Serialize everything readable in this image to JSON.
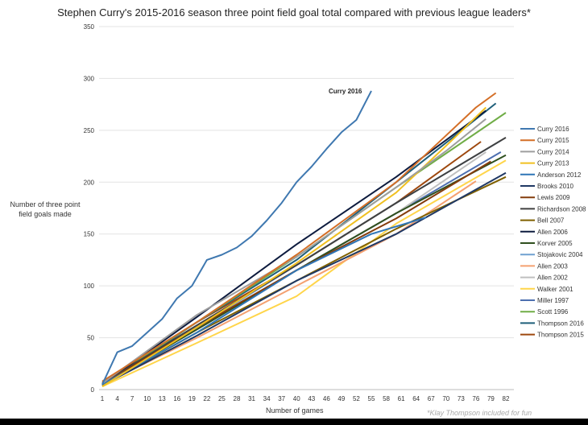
{
  "chart_data": {
    "type": "line",
    "title": "Stephen Curry's 2015-2016 season three point field goal total compared with previous league leaders*",
    "xlabel": "Number  of games",
    "ylabel": "Number  of three point field goals made",
    "footnote": "*Klay Thompson included for fun",
    "annotation": "Curry 2016",
    "xlim": [
      1,
      82
    ],
    "ylim": [
      0,
      350
    ],
    "x_ticks": [
      1,
      4,
      7,
      10,
      13,
      16,
      19,
      22,
      25,
      28,
      31,
      34,
      37,
      40,
      43,
      46,
      49,
      52,
      55,
      58,
      61,
      64,
      67,
      70,
      73,
      76,
      79,
      82
    ],
    "y_ticks": [
      0,
      50,
      100,
      150,
      200,
      250,
      300,
      350
    ],
    "grid": "horizontal",
    "legend": "right",
    "series": [
      {
        "name": "Curry 2016",
        "color": "#3f78b0",
        "points": [
          [
            1,
            5
          ],
          [
            4,
            36
          ],
          [
            7,
            42
          ],
          [
            10,
            55
          ],
          [
            13,
            68
          ],
          [
            16,
            88
          ],
          [
            19,
            100
          ],
          [
            22,
            125
          ],
          [
            25,
            130
          ],
          [
            28,
            137
          ],
          [
            31,
            148
          ],
          [
            34,
            163
          ],
          [
            37,
            180
          ],
          [
            40,
            200
          ],
          [
            43,
            215
          ],
          [
            46,
            232
          ],
          [
            49,
            248
          ],
          [
            52,
            260
          ],
          [
            55,
            288
          ]
        ]
      },
      {
        "name": "Curry 2015",
        "color": "#d46f27",
        "points": [
          [
            1,
            8
          ],
          [
            20,
            65
          ],
          [
            40,
            130
          ],
          [
            60,
            200
          ],
          [
            70,
            245
          ],
          [
            76,
            272
          ],
          [
            80,
            286
          ]
        ]
      },
      {
        "name": "Curry 2014",
        "color": "#9e9e9e",
        "points": [
          [
            1,
            6
          ],
          [
            20,
            72
          ],
          [
            40,
            128
          ],
          [
            60,
            195
          ],
          [
            70,
            230
          ],
          [
            78,
            261
          ]
        ]
      },
      {
        "name": "Curry 2013",
        "color": "#f0c020",
        "points": [
          [
            1,
            3
          ],
          [
            20,
            60
          ],
          [
            40,
            122
          ],
          [
            60,
            190
          ],
          [
            70,
            235
          ],
          [
            78,
            272
          ]
        ]
      },
      {
        "name": "Anderson 2012",
        "color": "#2e75b6",
        "points": [
          [
            1,
            5
          ],
          [
            20,
            55
          ],
          [
            40,
            115
          ],
          [
            55,
            150
          ],
          [
            66,
            166
          ]
        ]
      },
      {
        "name": "Brooks 2010",
        "color": "#1f3864",
        "points": [
          [
            1,
            4
          ],
          [
            20,
            52
          ],
          [
            40,
            105
          ],
          [
            60,
            150
          ],
          [
            82,
            209
          ]
        ]
      },
      {
        "name": "Lewis 2009",
        "color": "#843c0c",
        "points": [
          [
            1,
            5
          ],
          [
            20,
            60
          ],
          [
            40,
            115
          ],
          [
            60,
            165
          ],
          [
            79,
            220
          ]
        ]
      },
      {
        "name": "Richardson 2008",
        "color": "#404040",
        "points": [
          [
            1,
            6
          ],
          [
            20,
            62
          ],
          [
            40,
            120
          ],
          [
            60,
            180
          ],
          [
            82,
            243
          ]
        ]
      },
      {
        "name": "Bell 2007",
        "color": "#7f6000",
        "points": [
          [
            1,
            4
          ],
          [
            20,
            55
          ],
          [
            40,
            105
          ],
          [
            60,
            155
          ],
          [
            82,
            205
          ]
        ]
      },
      {
        "name": "Allen 2006",
        "color": "#0d1b3e",
        "points": [
          [
            1,
            5
          ],
          [
            20,
            70
          ],
          [
            40,
            140
          ],
          [
            60,
            205
          ],
          [
            78,
            269
          ]
        ]
      },
      {
        "name": "Korver 2005",
        "color": "#2f4f1e",
        "points": [
          [
            1,
            5
          ],
          [
            20,
            58
          ],
          [
            40,
            115
          ],
          [
            60,
            170
          ],
          [
            82,
            226
          ]
        ]
      },
      {
        "name": "Stojakovic 2004",
        "color": "#6fa0d0",
        "points": [
          [
            1,
            6
          ],
          [
            20,
            60
          ],
          [
            40,
            120
          ],
          [
            60,
            180
          ],
          [
            81,
            240
          ]
        ]
      },
      {
        "name": "Allen 2003",
        "color": "#f4a070",
        "points": [
          [
            1,
            5
          ],
          [
            20,
            50
          ],
          [
            40,
            100
          ],
          [
            60,
            150
          ],
          [
            76,
            201
          ]
        ]
      },
      {
        "name": "Allen 2002",
        "color": "#bfbfbf",
        "points": [
          [
            1,
            5
          ],
          [
            20,
            58
          ],
          [
            40,
            115
          ],
          [
            60,
            170
          ],
          [
            78,
            229
          ]
        ]
      },
      {
        "name": "Walker 2001",
        "color": "#ffd54a",
        "points": [
          [
            1,
            3
          ],
          [
            20,
            45
          ],
          [
            40,
            90
          ],
          [
            60,
            160
          ],
          [
            82,
            221
          ]
        ]
      },
      {
        "name": "Miller 1997",
        "color": "#4d6fb0",
        "points": [
          [
            1,
            5
          ],
          [
            20,
            60
          ],
          [
            40,
            115
          ],
          [
            60,
            170
          ],
          [
            81,
            229
          ]
        ]
      },
      {
        "name": "Scott 1996",
        "color": "#70ad47",
        "points": [
          [
            1,
            6
          ],
          [
            20,
            65
          ],
          [
            40,
            128
          ],
          [
            60,
            195
          ],
          [
            82,
            267
          ]
        ]
      },
      {
        "name": "Thompson 2016",
        "color": "#1f5f7a",
        "points": [
          [
            1,
            4
          ],
          [
            20,
            65
          ],
          [
            40,
            125
          ],
          [
            60,
            200
          ],
          [
            80,
            276
          ]
        ]
      },
      {
        "name": "Thompson 2015",
        "color": "#9e480e",
        "points": [
          [
            1,
            7
          ],
          [
            20,
            65
          ],
          [
            40,
            120
          ],
          [
            60,
            180
          ],
          [
            77,
            239
          ]
        ]
      }
    ]
  }
}
